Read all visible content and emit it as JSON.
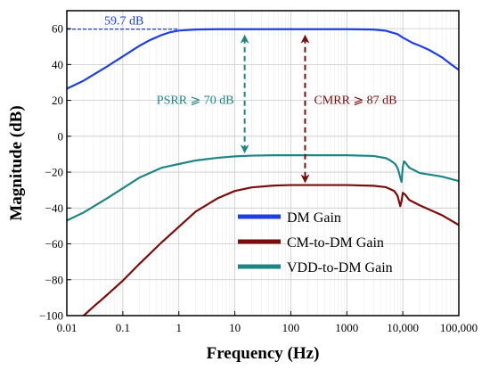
{
  "chart_data": {
    "type": "line",
    "xlabel": "Frequency (Hz)",
    "ylabel": "Magnitude (dB)",
    "x_scale": "log",
    "xlim": [
      0.01,
      100000
    ],
    "ylim": [
      -100,
      70
    ],
    "x_ticks": [
      {
        "value": 0.01,
        "label": "0.01"
      },
      {
        "value": 0.1,
        "label": "0.1"
      },
      {
        "value": 1,
        "label": "1"
      },
      {
        "value": 10,
        "label": "10"
      },
      {
        "value": 100,
        "label": "100"
      },
      {
        "value": 1000,
        "label": "1000"
      },
      {
        "value": 10000,
        "label": "10,000"
      },
      {
        "value": 100000,
        "label": "100,000"
      }
    ],
    "y_ticks": [
      {
        "value": 60,
        "label": "60"
      },
      {
        "value": 40,
        "label": "40"
      },
      {
        "value": 20,
        "label": "20"
      },
      {
        "value": 0,
        "label": "0"
      },
      {
        "value": -20,
        "label": "−20"
      },
      {
        "value": -40,
        "label": "−40"
      },
      {
        "value": -60,
        "label": "−60"
      },
      {
        "value": -80,
        "label": "−80"
      },
      {
        "value": -100,
        "label": "−100"
      }
    ],
    "grid": true,
    "legend_position": "bottom-right",
    "series": [
      {
        "name": "DM Gain",
        "color": "#1f3fe0",
        "x": [
          0.01,
          0.02,
          0.05,
          0.1,
          0.2,
          0.3,
          0.5,
          0.7,
          1,
          2,
          5,
          10,
          100,
          1000,
          3000,
          5000,
          8000,
          10000,
          15000,
          20000,
          30000,
          50000,
          70000,
          100000
        ],
        "y": [
          26.5,
          31,
          38.5,
          44.5,
          50.5,
          53.5,
          56.5,
          58,
          58.9,
          59.5,
          59.7,
          59.7,
          59.7,
          59.7,
          59.5,
          58.8,
          57,
          55,
          52,
          50.5,
          48,
          44,
          40.5,
          37
        ]
      },
      {
        "name": "CM-to-DM Gain",
        "color": "#7a0c0c",
        "x": [
          0.02,
          0.03,
          0.05,
          0.1,
          0.2,
          0.5,
          1,
          2,
          5,
          10,
          20,
          50,
          100,
          1000,
          3000,
          5000,
          7000,
          8000,
          8500,
          9000,
          9500,
          10000,
          11000,
          13000,
          20000,
          50000,
          100000
        ],
        "y": [
          -100,
          -95,
          -89,
          -80.5,
          -71,
          -59,
          -50.5,
          -42,
          -34.5,
          -30.5,
          -28.5,
          -27.5,
          -27.2,
          -27.2,
          -27.6,
          -28.4,
          -30.5,
          -33,
          -36,
          -39,
          -36,
          -31.5,
          -32.5,
          -35.5,
          -38.5,
          -44,
          -49.5
        ]
      },
      {
        "name": "VDD-to-DM Gain",
        "color": "#1f8484",
        "x": [
          0.01,
          0.02,
          0.05,
          0.1,
          0.2,
          0.5,
          0.7,
          1,
          2,
          5,
          10,
          20,
          50,
          100,
          1000,
          3000,
          5000,
          6000,
          7000,
          7500,
          8000,
          8500,
          9000,
          9500,
          10000,
          10500,
          11000,
          13000,
          20000,
          50000,
          100000
        ],
        "y": [
          -47,
          -42.5,
          -35,
          -29,
          -23,
          -17.5,
          -16.5,
          -15.5,
          -13.5,
          -12,
          -11.2,
          -10.8,
          -10.6,
          -10.6,
          -10.6,
          -11,
          -12.2,
          -13.5,
          -15,
          -16,
          -17.5,
          -20,
          -23,
          -25.5,
          -17,
          -14,
          -14.5,
          -17.5,
          -20.5,
          -22.5,
          -25
        ]
      }
    ],
    "annotations": [
      {
        "id": "dm-peak",
        "text": "59.7 dB",
        "color": "#1f3fe0",
        "x_from": 0.01,
        "x_to": 1,
        "y": 59.7
      },
      {
        "id": "psrr",
        "text": "PSRR ⩾ 70 dB",
        "color": "#1f8484",
        "x": 15,
        "y_from": 59.7,
        "y_to": -10.6
      },
      {
        "id": "cmrr",
        "text": "CMRR ⩾ 87 dB",
        "color": "#7a0c0c",
        "x": 180,
        "y_from": 59.7,
        "y_to": -27.2
      }
    ]
  }
}
